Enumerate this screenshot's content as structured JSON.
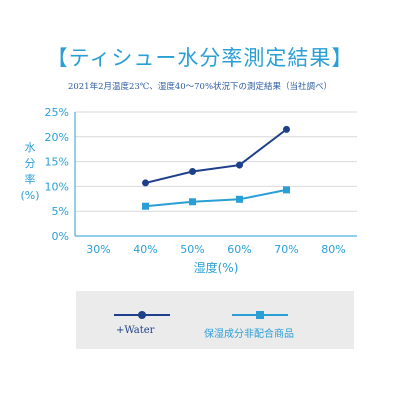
{
  "header": {
    "title": "【ティシュー水分率測定結果】",
    "subtitle": "2021年2月温度23℃、湿度40～70%状況下の測定結果（当社調べ）"
  },
  "colors": {
    "accent": "#2a9fd6",
    "water_series": "#1e3f8a",
    "control_series": "#2a9fd6",
    "grid": "#d9d9d9",
    "legend_bg": "#ebebeb"
  },
  "chart_data": {
    "type": "line",
    "x": [
      40,
      50,
      60,
      70
    ],
    "x_tick_labels": [
      "30%",
      "40%",
      "50%",
      "60%",
      "70%",
      "80%"
    ],
    "x_ticks": [
      30,
      40,
      50,
      60,
      70,
      80
    ],
    "xlim": [
      25,
      85
    ],
    "y_tick_labels": [
      "0%",
      "5%",
      "10%",
      "15%",
      "20%",
      "25%"
    ],
    "y_ticks": [
      0,
      5,
      10,
      15,
      20,
      25
    ],
    "ylim": [
      0,
      25
    ],
    "xlabel": "湿度(%)",
    "ylabel": [
      "水",
      "分",
      "率",
      "(%)"
    ],
    "grid": true,
    "legend_position": "bottom",
    "series": [
      {
        "name": "+Water",
        "values": [
          10.7,
          13.0,
          14.3,
          21.5
        ],
        "marker": "circle",
        "color": "#1e3f8a"
      },
      {
        "name": "保湿成分非配合商品",
        "values": [
          6.0,
          6.9,
          7.4,
          9.3
        ],
        "marker": "square",
        "color": "#2a9fd6"
      }
    ]
  }
}
